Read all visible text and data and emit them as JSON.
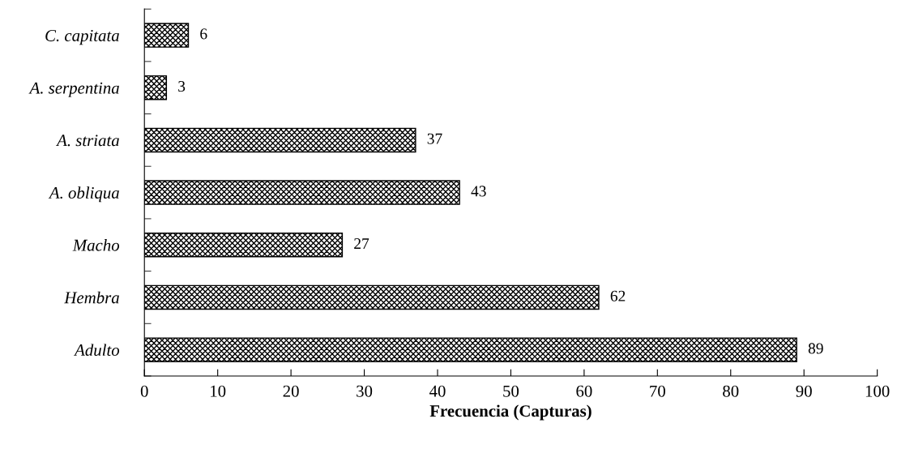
{
  "chart_data": {
    "type": "bar",
    "orientation": "horizontal",
    "xlabel": "Frecuencia (Capturas)",
    "categories": [
      "C. capitata",
      "A. serpentina",
      "A. striata",
      "A. obliqua",
      "Macho",
      "Hembra",
      "Adulto"
    ],
    "values": [
      6,
      3,
      37,
      43,
      27,
      62,
      89
    ],
    "color": "#000000",
    "data_labels": true,
    "grid": false,
    "legend": false,
    "xlim": [
      0,
      100
    ],
    "xticks": [
      0,
      10,
      20,
      30,
      40,
      50,
      60,
      70,
      80,
      90,
      100
    ]
  }
}
